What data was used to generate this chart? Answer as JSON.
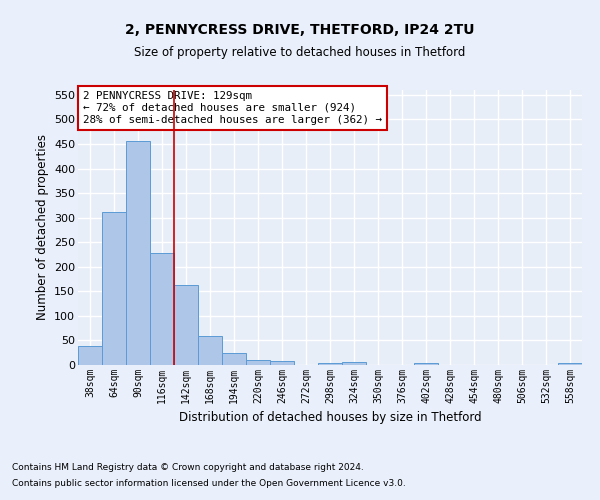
{
  "title1": "2, PENNYCRESS DRIVE, THETFORD, IP24 2TU",
  "title2": "Size of property relative to detached houses in Thetford",
  "xlabel": "Distribution of detached houses by size in Thetford",
  "ylabel": "Number of detached properties",
  "footnote1": "Contains HM Land Registry data © Crown copyright and database right 2024.",
  "footnote2": "Contains public sector information licensed under the Open Government Licence v3.0.",
  "bar_labels": [
    "38sqm",
    "64sqm",
    "90sqm",
    "116sqm",
    "142sqm",
    "168sqm",
    "194sqm",
    "220sqm",
    "246sqm",
    "272sqm",
    "298sqm",
    "324sqm",
    "350sqm",
    "376sqm",
    "402sqm",
    "428sqm",
    "454sqm",
    "480sqm",
    "506sqm",
    "532sqm",
    "558sqm"
  ],
  "bar_values": [
    38,
    311,
    456,
    228,
    162,
    59,
    25,
    11,
    8,
    0,
    5,
    6,
    0,
    0,
    5,
    0,
    0,
    0,
    0,
    0,
    5
  ],
  "bar_color": "#aec6e8",
  "bar_edge_color": "#5b9bd5",
  "fig_bg_color": "#eaf0fb",
  "ax_bg_color": "#e8eef8",
  "grid_color": "#ffffff",
  "red_line_x": 3.5,
  "annotation_text": "2 PENNYCRESS DRIVE: 129sqm\n← 72% of detached houses are smaller (924)\n28% of semi-detached houses are larger (362) →",
  "annotation_box_color": "#ffffff",
  "annotation_box_edge_color": "#cc0000",
  "ylim": [
    0,
    560
  ],
  "yticks": [
    0,
    50,
    100,
    150,
    200,
    250,
    300,
    350,
    400,
    450,
    500,
    550
  ]
}
